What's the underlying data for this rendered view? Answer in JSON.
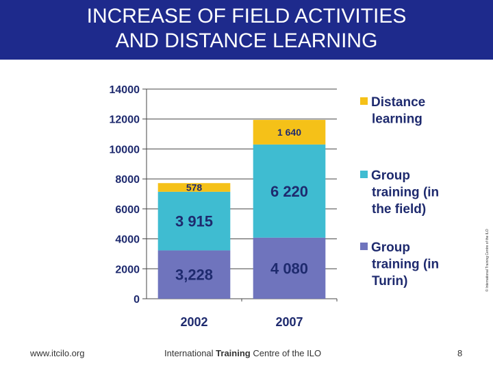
{
  "header": {
    "title_line1": "INCREASE OF FIELD ACTIVITIES",
    "title_line2": "AND DISTANCE LEARNING",
    "background_color": "#1e2a8c"
  },
  "chart_data": {
    "type": "bar",
    "stacked": true,
    "categories": [
      "2002",
      "2007"
    ],
    "series": [
      {
        "name": "Group training (in Turin)",
        "legend_lines": [
          "Group",
          "training (in",
          "Turin)"
        ],
        "color": "#6f74bd",
        "values": [
          3228,
          4080
        ],
        "labels": [
          "3,228",
          "4 080"
        ]
      },
      {
        "name": "Group training (in the field)",
        "legend_lines": [
          "Group",
          "training (in",
          "the field)"
        ],
        "color": "#3fbcd1",
        "values": [
          3915,
          6220
        ],
        "labels": [
          "3 915",
          "6 220"
        ]
      },
      {
        "name": "Distance learning",
        "legend_lines": [
          "Distance",
          "learning"
        ],
        "color": "#f5c118",
        "values": [
          578,
          1640
        ],
        "labels": [
          "578",
          "1 640"
        ]
      }
    ],
    "yticks": [
      "0",
      "2000",
      "4000",
      "6000",
      "8000",
      "10000",
      "12000",
      "14000"
    ],
    "ylim": [
      0,
      14000
    ],
    "grid": true,
    "legend": "right"
  },
  "side_note": "© International Training Centre of the ILO",
  "footer": {
    "url": "www.itcilo.org",
    "centre_pre": "International ",
    "centre_bold": "Training",
    "centre_post": " Centre of the ILO",
    "page": "8"
  }
}
